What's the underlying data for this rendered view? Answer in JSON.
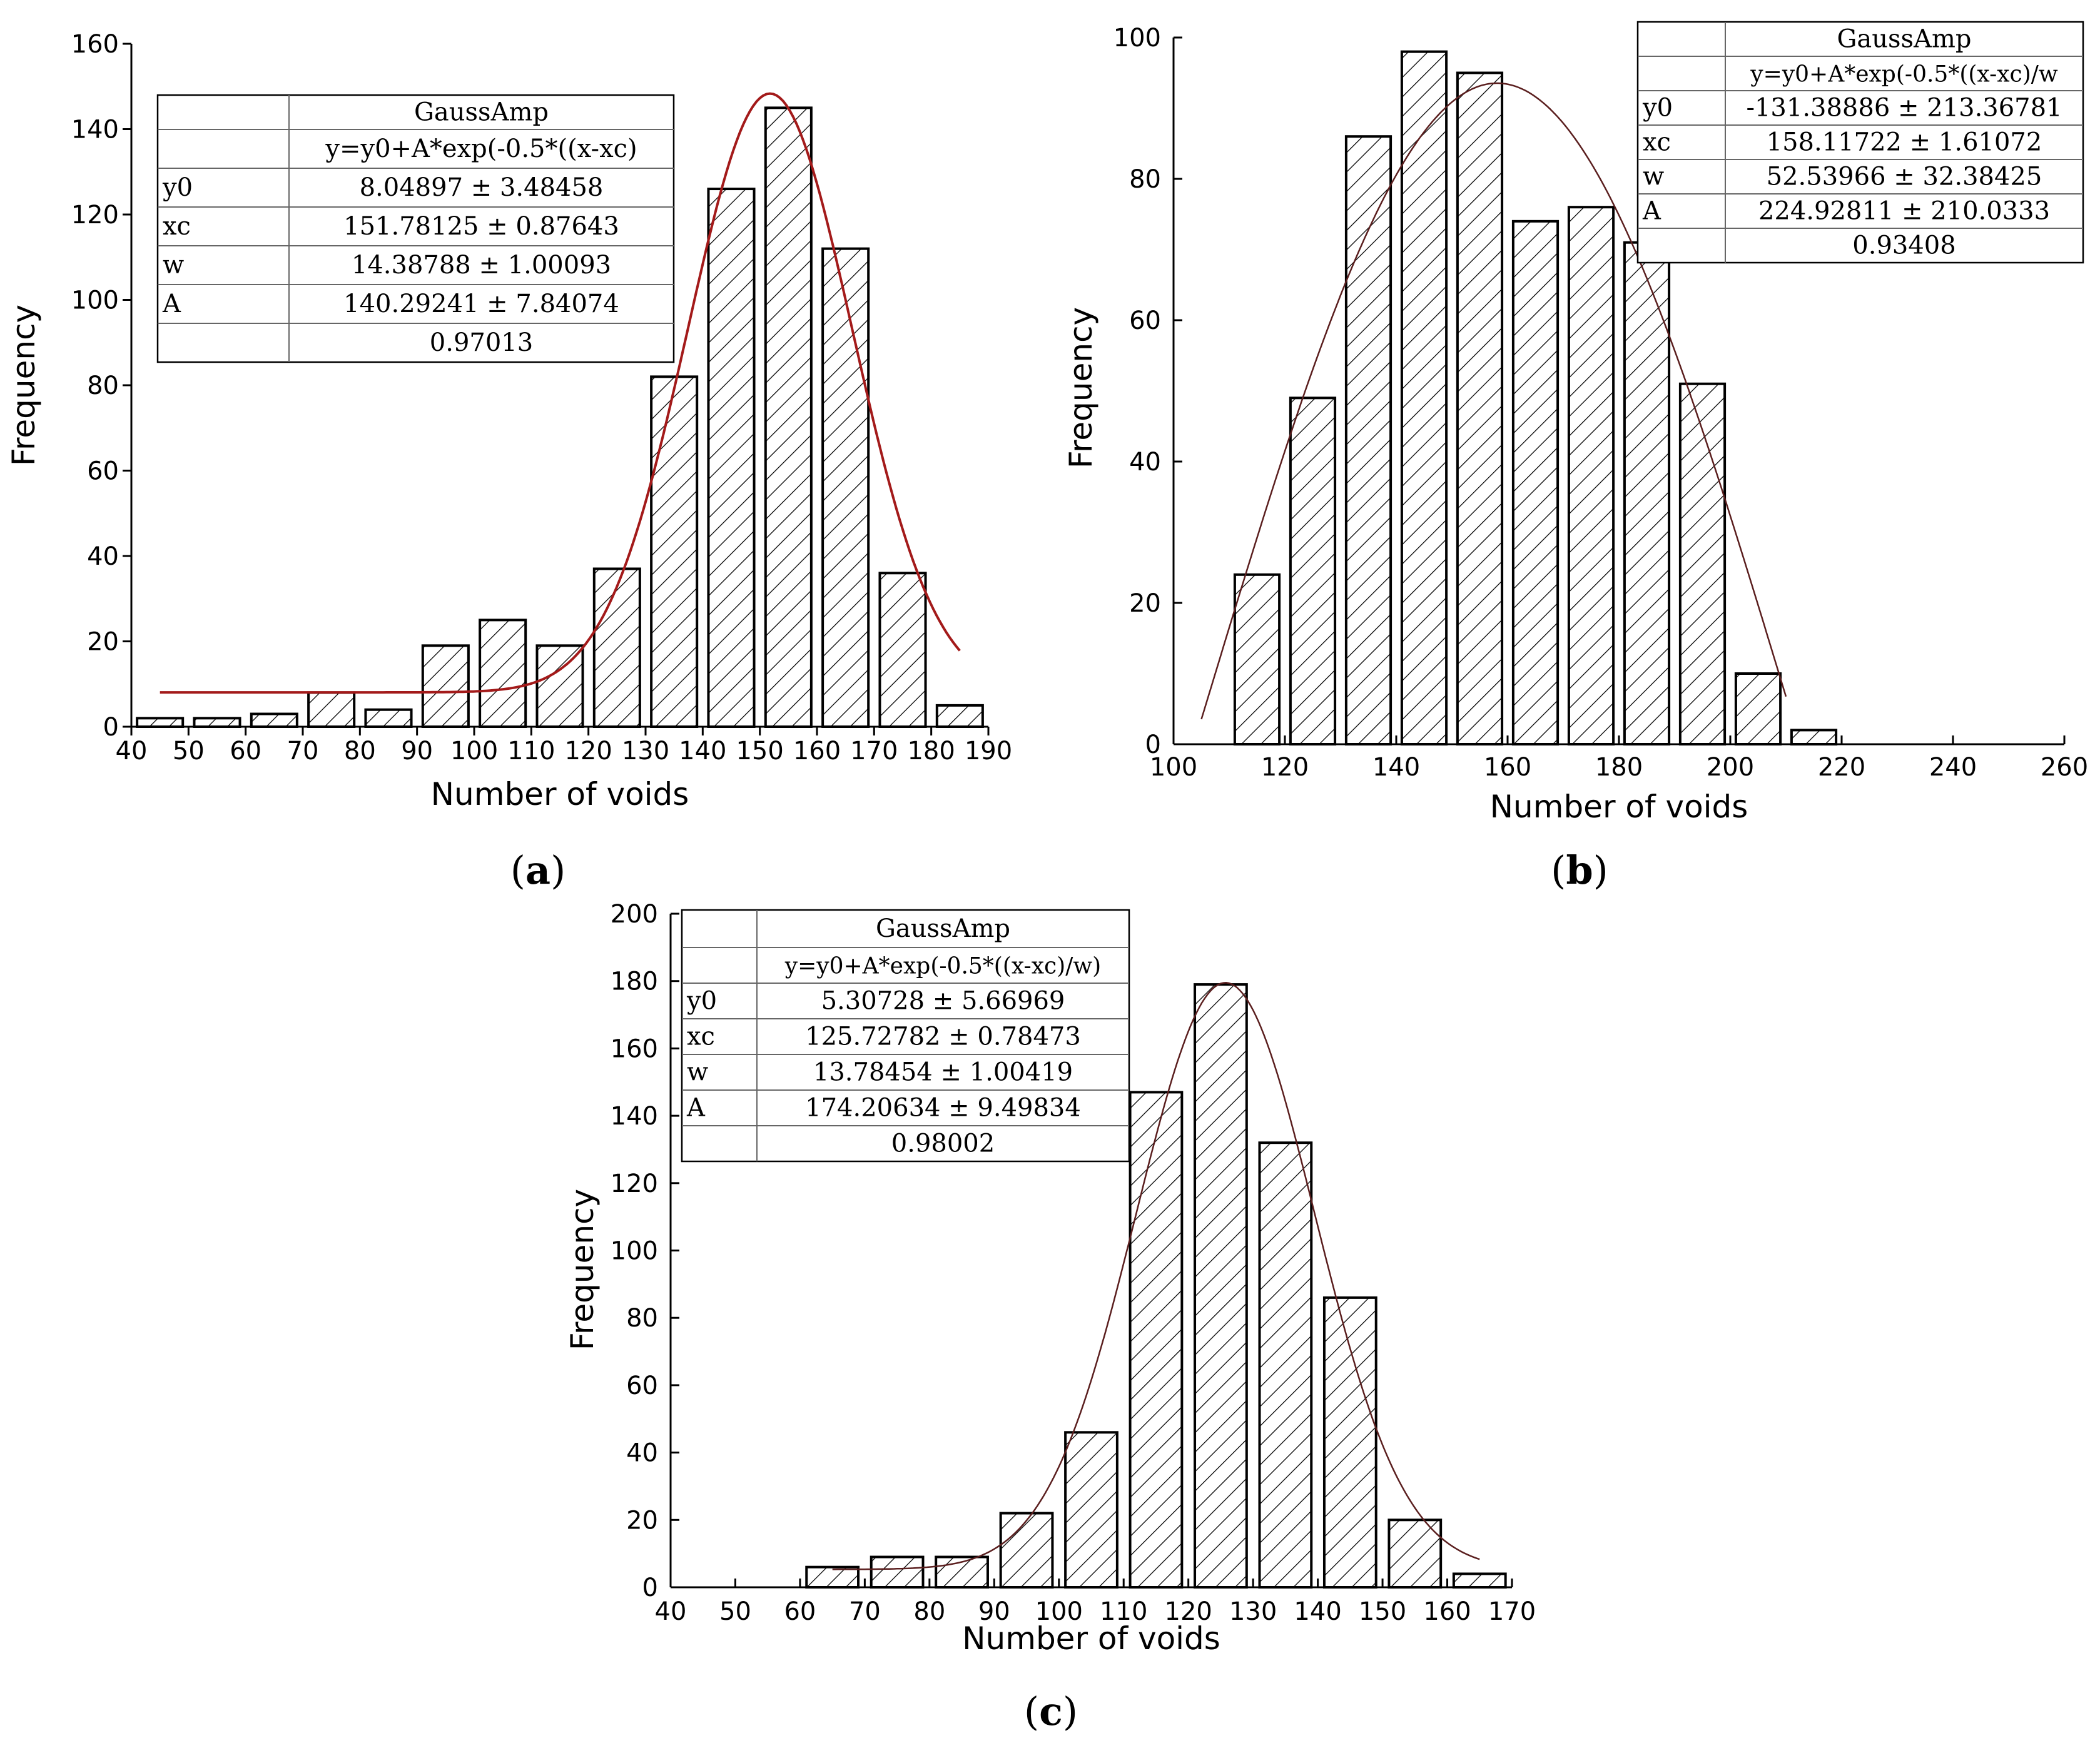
{
  "chart_data": [
    {
      "panel": "(a)",
      "type": "bar",
      "xlabel": "Number of voids",
      "ylabel": "Frequency",
      "xlim": [
        40,
        190
      ],
      "ylim": [
        0,
        160
      ],
      "xticks": [
        40,
        50,
        60,
        70,
        80,
        90,
        100,
        110,
        120,
        130,
        140,
        150,
        160,
        170,
        180,
        190
      ],
      "yticks": [
        0,
        20,
        40,
        60,
        80,
        100,
        120,
        140,
        160
      ],
      "bin_width": 10,
      "bin_centers": [
        45,
        55,
        65,
        75,
        85,
        95,
        105,
        115,
        125,
        135,
        145,
        155,
        165,
        175,
        185
      ],
      "values": [
        2,
        2,
        3,
        8,
        4,
        19,
        25,
        19,
        37,
        82,
        126,
        145,
        112,
        36,
        5
      ],
      "fit": {
        "model": "GaussAmp",
        "y0": 8.04897,
        "xc": 151.78125,
        "w": 14.38788,
        "A": 140.29241,
        "x_range": [
          45,
          185
        ],
        "color": "#a31a1a"
      },
      "fit_table": {
        "title": "GaussAmp",
        "equation": "y=y0+A*exp(-0.5*((x-xc)",
        "rows": [
          {
            "name": "y0",
            "value": "8.04897 ± 3.48458"
          },
          {
            "name": "xc",
            "value": "151.78125 ± 0.87643"
          },
          {
            "name": "w",
            "value": "14.38788 ± 1.00093"
          },
          {
            "name": "A",
            "value": "140.29241 ± 7.84074"
          },
          {
            "name": "",
            "value": "0.97013"
          }
        ]
      }
    },
    {
      "panel": "(b)",
      "type": "bar",
      "xlabel": "Number of voids",
      "ylabel": "Frequency",
      "xlim": [
        100,
        260
      ],
      "ylim": [
        0,
        100
      ],
      "xticks": [
        100,
        120,
        140,
        160,
        180,
        200,
        220,
        240,
        260
      ],
      "yticks": [
        0,
        20,
        40,
        60,
        80,
        100
      ],
      "bin_width": 10,
      "bin_centers": [
        115,
        125,
        135,
        145,
        155,
        165,
        175,
        185,
        195,
        205,
        215
      ],
      "values": [
        24,
        49,
        86,
        98,
        95,
        74,
        76,
        71,
        51,
        10,
        2
      ],
      "fit": {
        "model": "GaussAmp",
        "y0": -131.38886,
        "xc": 158.11722,
        "w": 52.53966,
        "A": 224.92811,
        "x_range": [
          105,
          210
        ],
        "color": "#5a1e1e"
      },
      "fit_table": {
        "title": "GaussAmp",
        "equation": "y=y0+A*exp(-0.5*((x-xc)/w",
        "rows": [
          {
            "name": "y0",
            "value": "-131.38886 ± 213.36781"
          },
          {
            "name": "xc",
            "value": "158.11722 ± 1.61072"
          },
          {
            "name": "w",
            "value": "52.53966 ± 32.38425"
          },
          {
            "name": "A",
            "value": "224.92811 ± 210.0333"
          },
          {
            "name": "",
            "value": "0.93408"
          }
        ]
      }
    },
    {
      "panel": "(c)",
      "type": "bar",
      "xlabel": "Number of voids",
      "ylabel": "Frequency",
      "xlim": [
        40,
        170
      ],
      "ylim": [
        0,
        200
      ],
      "xticks": [
        40,
        50,
        60,
        70,
        80,
        90,
        100,
        110,
        120,
        130,
        140,
        150,
        160,
        170
      ],
      "yticks": [
        0,
        20,
        40,
        60,
        80,
        100,
        120,
        140,
        160,
        180,
        200
      ],
      "bin_width": 10,
      "bin_centers": [
        65,
        75,
        85,
        95,
        105,
        115,
        125,
        135,
        145,
        155,
        165
      ],
      "values": [
        6,
        9,
        9,
        22,
        46,
        147,
        179,
        132,
        86,
        20,
        4
      ],
      "fit": {
        "model": "GaussAmp",
        "y0": 5.30728,
        "xc": 125.72782,
        "w": 13.78454,
        "A": 174.20634,
        "x_range": [
          65,
          165
        ],
        "color": "#5a1e1e"
      },
      "fit_table": {
        "title": "GaussAmp",
        "equation": "y=y0+A*exp(-0.5*((x-xc)/w)",
        "rows": [
          {
            "name": "y0",
            "value": "5.30728 ± 5.66969"
          },
          {
            "name": "xc",
            "value": "125.72782 ± 0.78473"
          },
          {
            "name": "w",
            "value": "13.78454 ± 1.00419"
          },
          {
            "name": "A",
            "value": "174.20634 ± 9.49834"
          },
          {
            "name": "",
            "value": "0.98002"
          }
        ]
      }
    }
  ]
}
